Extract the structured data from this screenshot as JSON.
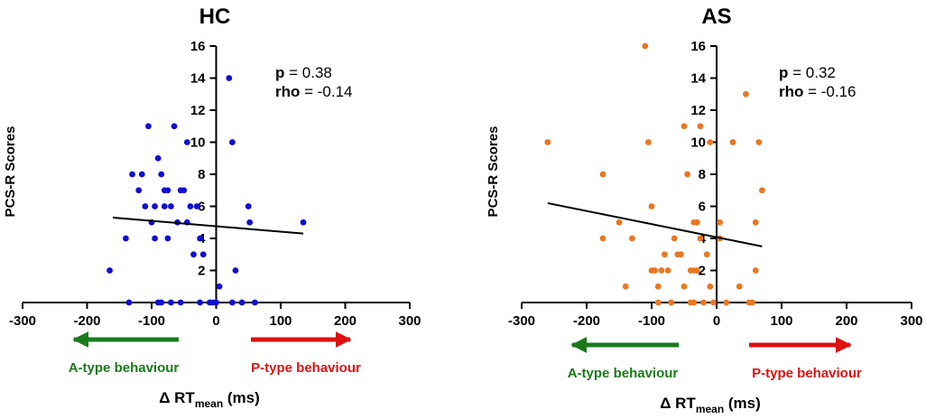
{
  "chart_data": [
    {
      "type": "scatter",
      "title": "HC",
      "xlabel_prefix": "Δ RT",
      "xlabel_sub": "mean",
      "xlabel_suffix": " (ms)",
      "ylabel": "PCS-R Scores",
      "xlim": [
        -300,
        300
      ],
      "ylim": [
        0,
        16
      ],
      "x_ticks": [
        "-300",
        "-200",
        "-100",
        "0",
        "100",
        "200",
        "300"
      ],
      "y_ticks": [
        "2",
        "4",
        "6",
        "8",
        "10",
        "12",
        "14",
        "16"
      ],
      "point_color": "#1010d0",
      "stats": {
        "p_label": "p",
        "p_value": " = 0.38",
        "rho_label": "rho",
        "rho_value": " = -0.14"
      },
      "fit": {
        "x": [
          -160,
          135
        ],
        "y": [
          5.3,
          4.3
        ]
      },
      "arrows": {
        "left_label": "A-type behaviour",
        "right_label": "P-type behaviour",
        "left_color": "#1a7a1a",
        "right_color": "#dd1111"
      },
      "points": [
        [
          -165,
          2
        ],
        [
          -140,
          4
        ],
        [
          -135,
          0
        ],
        [
          -130,
          8
        ],
        [
          -120,
          7
        ],
        [
          -115,
          8
        ],
        [
          -110,
          6
        ],
        [
          -105,
          11
        ],
        [
          -100,
          5
        ],
        [
          -95,
          4
        ],
        [
          -95,
          6
        ],
        [
          -90,
          9
        ],
        [
          -90,
          0
        ],
        [
          -85,
          8
        ],
        [
          -85,
          0
        ],
        [
          -80,
          7
        ],
        [
          -80,
          6
        ],
        [
          -75,
          4
        ],
        [
          -75,
          7
        ],
        [
          -70,
          6
        ],
        [
          -70,
          0
        ],
        [
          -65,
          11
        ],
        [
          -60,
          5
        ],
        [
          -55,
          7
        ],
        [
          -55,
          0
        ],
        [
          -50,
          7
        ],
        [
          -45,
          10
        ],
        [
          -45,
          5
        ],
        [
          -40,
          6
        ],
        [
          -35,
          3
        ],
        [
          -30,
          6
        ],
        [
          -25,
          4
        ],
        [
          -25,
          0
        ],
        [
          -20,
          3
        ],
        [
          -10,
          0
        ],
        [
          -5,
          0
        ],
        [
          0,
          0
        ],
        [
          5,
          1
        ],
        [
          20,
          14
        ],
        [
          25,
          10
        ],
        [
          30,
          2
        ],
        [
          25,
          0
        ],
        [
          40,
          0
        ],
        [
          50,
          6
        ],
        [
          52,
          5
        ],
        [
          60,
          0
        ],
        [
          135,
          5
        ]
      ]
    },
    {
      "type": "scatter",
      "title": "AS",
      "xlabel_prefix": "Δ RT",
      "xlabel_sub": "mean",
      "xlabel_suffix": " (ms)",
      "ylabel": "PCS-R Scores",
      "xlim": [
        -300,
        300
      ],
      "ylim": [
        0,
        16
      ],
      "x_ticks": [
        "-300",
        "-200",
        "-100",
        "0",
        "100",
        "200",
        "300"
      ],
      "y_ticks": [
        "2",
        "4",
        "6",
        "8",
        "10",
        "12",
        "14",
        "16"
      ],
      "point_color": "#e87722",
      "stats": {
        "p_label": "p",
        "p_value": " = 0.32",
        "rho_label": "rho",
        "rho_value": " = -0.16"
      },
      "fit": {
        "x": [
          -260,
          70
        ],
        "y": [
          6.2,
          3.5
        ]
      },
      "arrows": {
        "left_label": "A-type behaviour",
        "right_label": "P-type behaviour",
        "left_color": "#1a7a1a",
        "right_color": "#dd1111"
      },
      "points": [
        [
          -110,
          16
        ],
        [
          -260,
          10
        ],
        [
          -175,
          8
        ],
        [
          -175,
          4
        ],
        [
          -150,
          5
        ],
        [
          -140,
          1
        ],
        [
          -130,
          4
        ],
        [
          -105,
          10
        ],
        [
          -100,
          6
        ],
        [
          -100,
          2
        ],
        [
          -95,
          2
        ],
        [
          -90,
          1
        ],
        [
          -90,
          0
        ],
        [
          -85,
          2
        ],
        [
          -80,
          3
        ],
        [
          -75,
          2
        ],
        [
          -70,
          0
        ],
        [
          -65,
          4
        ],
        [
          -60,
          3
        ],
        [
          -55,
          3
        ],
        [
          -50,
          11
        ],
        [
          -50,
          1
        ],
        [
          -45,
          8
        ],
        [
          -40,
          2
        ],
        [
          -40,
          0
        ],
        [
          -35,
          5
        ],
        [
          -35,
          2
        ],
        [
          -35,
          0
        ],
        [
          -30,
          5
        ],
        [
          -30,
          2
        ],
        [
          -25,
          11
        ],
        [
          -25,
          4
        ],
        [
          -20,
          0
        ],
        [
          -15,
          3
        ],
        [
          -10,
          10
        ],
        [
          -10,
          1
        ],
        [
          -5,
          0
        ],
        [
          5,
          5
        ],
        [
          5,
          4
        ],
        [
          15,
          0
        ],
        [
          25,
          10
        ],
        [
          35,
          1
        ],
        [
          45,
          13
        ],
        [
          50,
          0
        ],
        [
          55,
          0
        ],
        [
          60,
          2
        ],
        [
          60,
          5
        ],
        [
          65,
          10
        ],
        [
          70,
          7
        ]
      ]
    }
  ]
}
